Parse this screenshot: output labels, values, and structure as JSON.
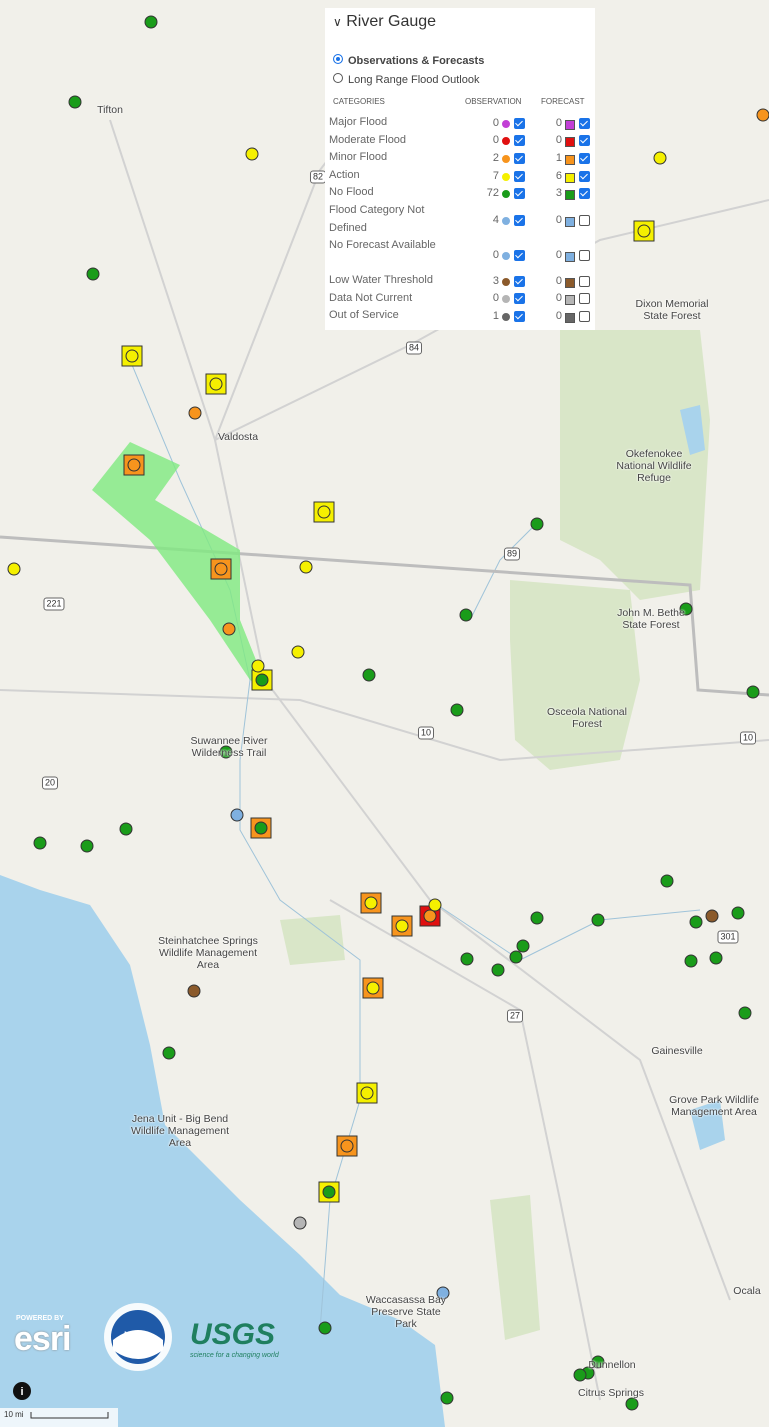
{
  "panel": {
    "title": "River Gauge",
    "options": [
      "Observations & Forecasts",
      "Long Range Flood Outlook"
    ],
    "columns": [
      "CATEGORIES",
      "OBSERVATION",
      "FORECAST"
    ],
    "rows": [
      {
        "category": "Major Flood",
        "observation": 0,
        "forecast": 0,
        "color": "#c23fd6",
        "forecast_checked": true
      },
      {
        "category": "Moderate Flood",
        "observation": 0,
        "forecast": 0,
        "color": "#e01010",
        "forecast_checked": true
      },
      {
        "category": "Minor Flood",
        "observation": 2,
        "forecast": 1,
        "color": "#f7941d",
        "forecast_checked": true
      },
      {
        "category": "Action",
        "observation": 7,
        "forecast": 6,
        "color": "#f5f000",
        "forecast_checked": true
      },
      {
        "category": "No Flood",
        "observation": 72,
        "forecast": 3,
        "color": "#1a9c1a",
        "forecast_checked": true
      },
      {
        "category": "Flood Category Not Defined",
        "observation": 4,
        "forecast": 0,
        "color": "#7fb0e0",
        "forecast_checked": false
      },
      {
        "category": "No Forecast Available",
        "observation": 0,
        "forecast": 0,
        "color": "#7fb0e0",
        "forecast_checked": false
      },
      {
        "category": "Low Water Threshold",
        "observation": 3,
        "forecast": 0,
        "color": "#8b5a2b",
        "forecast_checked": false
      },
      {
        "category": "Data Not Current",
        "observation": 0,
        "forecast": 0,
        "color": "#b5b5b5",
        "forecast_checked": false
      },
      {
        "category": "Out of Service",
        "observation": 1,
        "forecast": 0,
        "color": "#666666",
        "forecast_checked": false
      }
    ]
  },
  "map_labels": [
    "Tifton",
    "Valdosta",
    "Dixon Memorial State Forest",
    "Okefenokee National Wildlife Refuge",
    "John M. Bethe State Forest",
    "Osceola National Forest",
    "Suwannee River Wilderness Trail",
    "Steinhatchee Springs Wildlife Management Area",
    "Gainesville",
    "Grove Park Wildlife Management Area",
    "Jena Unit - Big Bend Wildlife Management Area",
    "Waccasassa Bay Preserve State Park",
    "Ocala",
    "Dunnellon",
    "Citrus Springs"
  ],
  "road_labels": [
    82,
    84,
    89,
    221,
    10,
    10,
    20,
    27,
    301
  ],
  "logos": {
    "esri_top": "POWERED BY",
    "esri": "esri",
    "noaa": "NOAA",
    "usgs": "USGS",
    "usgs_tagline": "science for a changing world"
  },
  "scale": "10 mi"
}
